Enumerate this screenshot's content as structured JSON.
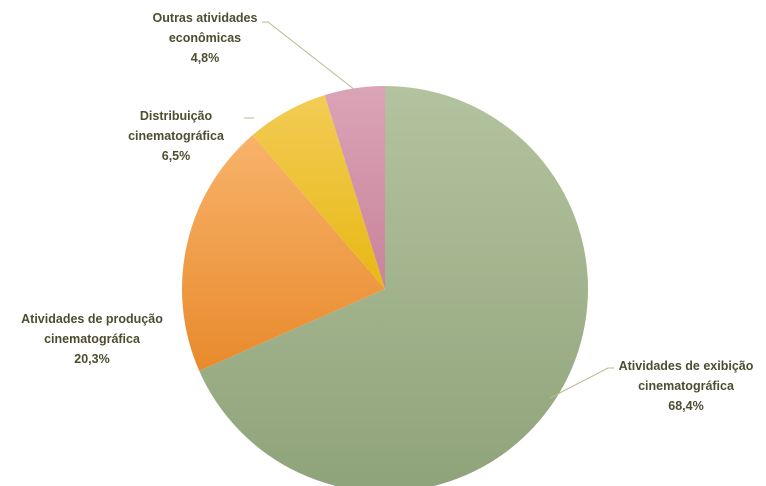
{
  "chart_data": {
    "type": "pie",
    "title": "",
    "start_angle_deg": 0,
    "direction": "clockwise",
    "slices": [
      {
        "label_lines": [
          "Atividades de exibição",
          "cinematográfica"
        ],
        "value": 68.4,
        "value_label": "68,4%",
        "color_top": "#b4c39f",
        "color_bottom": "#8fa37a"
      },
      {
        "label_lines": [
          "Atividades de produção",
          "cinematográfica"
        ],
        "value": 20.3,
        "value_label": "20,3%",
        "color_top": "#f8b36a",
        "color_bottom": "#e88a2c"
      },
      {
        "label_lines": [
          "Distribuição",
          "cinematográfica"
        ],
        "value": 6.5,
        "value_label": "6,5%",
        "color_top": "#f2cc55",
        "color_bottom": "#e8b814"
      },
      {
        "label_lines": [
          "Outras atividades",
          "econômicas"
        ],
        "value": 4.8,
        "value_label": "4,8%",
        "color_top": "#dba4b6",
        "color_bottom": "#c9829a"
      }
    ]
  }
}
